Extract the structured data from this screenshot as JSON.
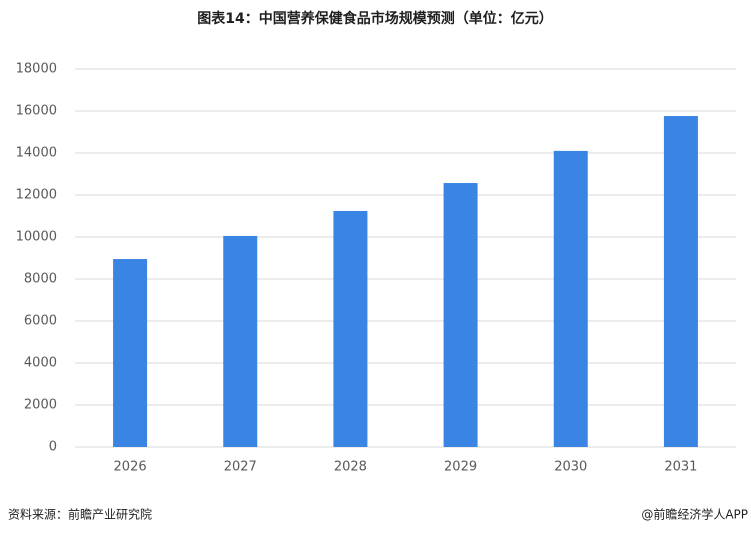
{
  "chart_data": {
    "type": "bar",
    "title": "图表14：中国营养保健食品市场规模预测（单位：亿元）",
    "categories": [
      "2026",
      "2027",
      "2028",
      "2029",
      "2030",
      "2031"
    ],
    "values": [
      8950,
      10050,
      11240,
      12570,
      14100,
      15760
    ],
    "color": "#3a84e4",
    "ylim": [
      0,
      18000
    ],
    "yticks": [
      0,
      2000,
      4000,
      6000,
      8000,
      10000,
      12000,
      14000,
      16000,
      18000
    ],
    "grid": true,
    "source": "资料来源：前瞻产业研究院",
    "credit": "@前瞻经济学人APP"
  }
}
